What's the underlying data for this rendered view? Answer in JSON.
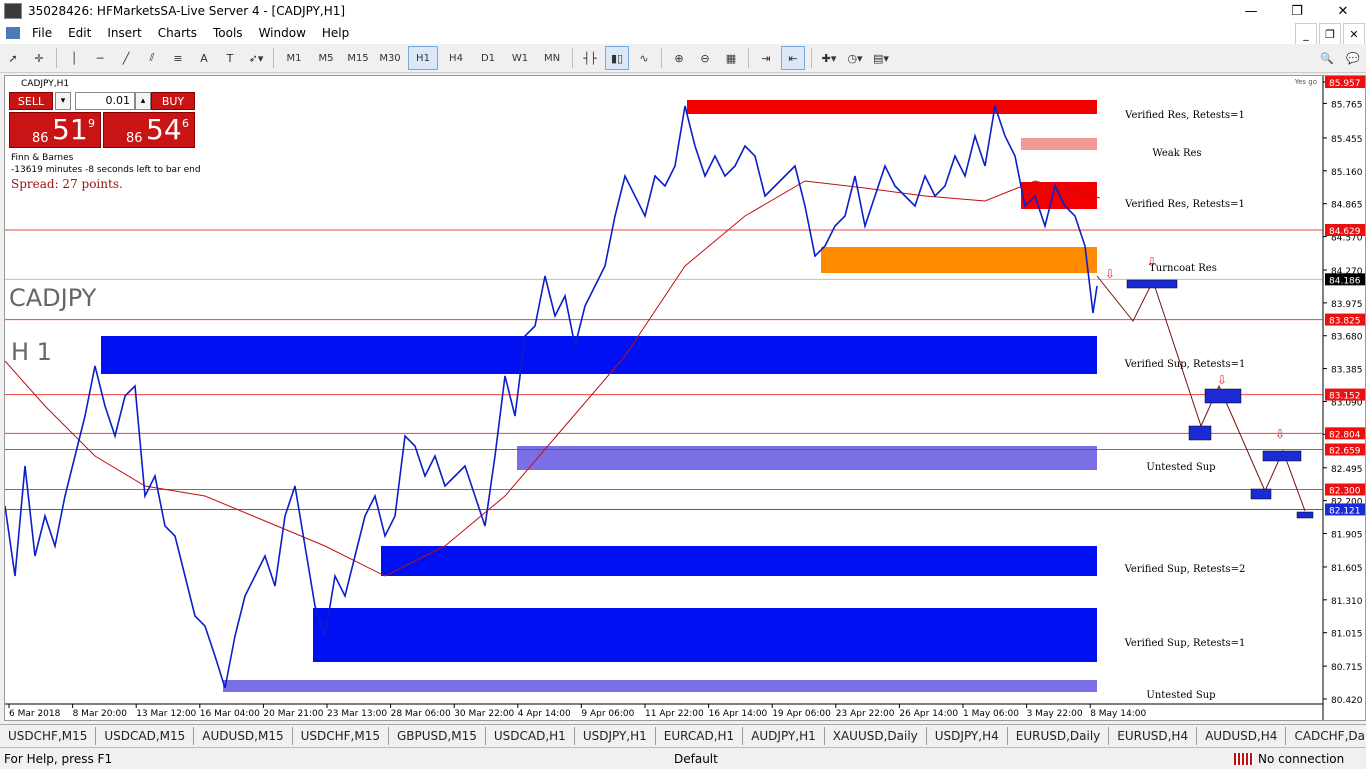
{
  "window": {
    "title": "35028426: HFMarketsSA-Live Server 4 - [CADJPY,H1]",
    "controls": [
      "—",
      "❐",
      "✕"
    ]
  },
  "menu": [
    "File",
    "Edit",
    "Insert",
    "Charts",
    "Tools",
    "Window",
    "Help"
  ],
  "toolbar": {
    "timeframes": [
      "M1",
      "M5",
      "M15",
      "M30",
      "H1",
      "H4",
      "D1",
      "W1",
      "MN"
    ],
    "active_timeframe": "H1"
  },
  "chart": {
    "header": "CADJPY,H1",
    "symbol_label": "CADJPY",
    "timeframe_label": "H 1",
    "corner_label": "Yes go",
    "info_lines": [
      "Finn & Barnes",
      "-13619 minutes -8 seconds left to bar end"
    ],
    "spread": "Spread: 27 points.",
    "trade": {
      "sell_label": "SELL",
      "buy_label": "BUY",
      "volume": "0.01",
      "sell_price": {
        "small": "86",
        "big": "51",
        "sup": "9"
      },
      "buy_price": {
        "small": "86",
        "big": "54",
        "sup": "6"
      }
    },
    "zone_labels": [
      "Verified Res, Retests=1",
      "Weak Res",
      "Verified Res, Retests=1",
      "Turncoat Res",
      "Verified Sup, Retests=1",
      "Untested Sup",
      "Verified Sup, Retests=2",
      "Verified Sup, Retests=1",
      "Untested Sup"
    ],
    "price_ticks": [
      "85.957",
      "85.765",
      "85.455",
      "85.160",
      "84.865",
      "84.570",
      "84.270",
      "83.975",
      "83.680",
      "83.385",
      "83.090",
      "82.795",
      "82.495",
      "82.200",
      "81.905",
      "81.605",
      "81.310",
      "81.015",
      "80.715",
      "80.420"
    ],
    "marked_prices": [
      {
        "label": "85.957",
        "color": "#e81010"
      },
      {
        "label": "84.629",
        "color": "#e81010"
      },
      {
        "label": "84.186",
        "color": "#000000"
      },
      {
        "label": "83.825",
        "color": "#e81010"
      },
      {
        "label": "83.152",
        "color": "#e81010"
      },
      {
        "label": "82.804",
        "color": "#e81010"
      },
      {
        "label": "82.659",
        "color": "#e81010"
      },
      {
        "label": "82.300",
        "color": "#e81010"
      },
      {
        "label": "82.121",
        "color": "#1a2bd6"
      }
    ],
    "time_labels": [
      "6 Mar 2018",
      "8 Mar 20:00",
      "13 Mar 12:00",
      "16 Mar 04:00",
      "20 Mar 21:00",
      "23 Mar 13:00",
      "28 Mar 06:00",
      "30 Mar 22:00",
      "4 Apr 14:00",
      "9 Apr 06:00",
      "11 Apr 22:00",
      "16 Apr 14:00",
      "19 Apr 06:00",
      "23 Apr 22:00",
      "26 Apr 14:00",
      "1 May 06:00",
      "3 May 22:00",
      "8 May 14:00"
    ],
    "colors": {
      "resistance": "#f20000",
      "weak_resistance": "#f29a9a",
      "turncoat": "#ff8a00",
      "support": "#0010f2",
      "untested_support": "#7b6fe6",
      "price_line": "#0b1fc9",
      "moving_average": "#c01010"
    }
  },
  "tabs": [
    "USDCHF,M15",
    "USDCAD,M15",
    "AUDUSD,M15",
    "USDCHF,M15",
    "GBPUSD,M15",
    "USDCAD,H1",
    "USDJPY,H1",
    "EURCAD,H1",
    "AUDJPY,H1",
    "XAUUSD,Daily",
    "USDJPY,H4",
    "EURUSD,Daily",
    "EURUSD,H4",
    "AUDUSD,H4",
    "CADCHF,Da"
  ],
  "status": {
    "help": "For Help, press F1",
    "profile": "Default",
    "connection": "No connection"
  }
}
